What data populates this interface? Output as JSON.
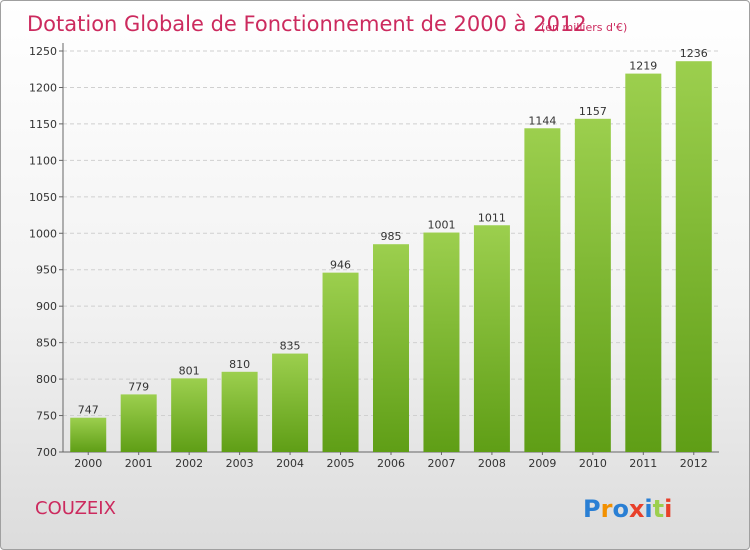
{
  "chart_data": {
    "type": "bar",
    "title": "Dotation Globale de Fonctionnement de 2000 à 2012",
    "unit_note": "(en milliers d'€)",
    "categories": [
      "2000",
      "2001",
      "2002",
      "2003",
      "2004",
      "2005",
      "2006",
      "2007",
      "2008",
      "2009",
      "2010",
      "2011",
      "2012"
    ],
    "values": [
      747,
      779,
      801,
      810,
      835,
      946,
      985,
      1001,
      1011,
      1144,
      1157,
      1219,
      1236
    ],
    "ylim": [
      700,
      1250
    ],
    "yticks": [
      700,
      750,
      800,
      850,
      900,
      950,
      1000,
      1050,
      1100,
      1150,
      1200,
      1250
    ],
    "grid": true,
    "bar_color_top": "#9ccf4e",
    "bar_color_bottom": "#5f9e16"
  },
  "footer": {
    "commune": "COUZEIX",
    "logo": "Proxiti"
  },
  "colors": {
    "title": "#cc2a5e",
    "logo_letters": [
      "#2a7fd4",
      "#f29000",
      "#2a7fd4",
      "#e8402a",
      "#2a7fd4",
      "#9ccf4e",
      "#e8402a"
    ]
  }
}
